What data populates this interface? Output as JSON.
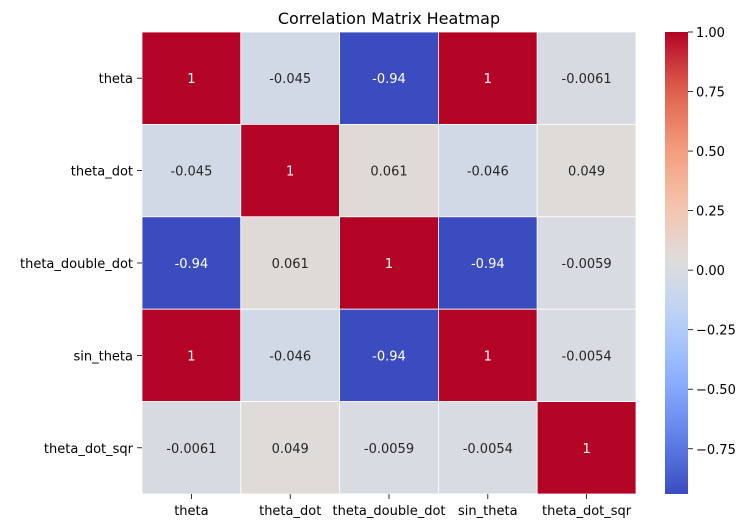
{
  "chart_data": {
    "type": "heatmap",
    "title": "Correlation Matrix Heatmap",
    "xlabel": "",
    "ylabel": "",
    "x_labels": [
      "theta",
      "theta_dot",
      "theta_double_dot",
      "sin_theta",
      "theta_dot_sqr"
    ],
    "y_labels": [
      "theta",
      "theta_dot",
      "theta_double_dot",
      "sin_theta",
      "theta_dot_sqr"
    ],
    "values": [
      [
        1,
        -0.045,
        -0.94,
        1,
        -0.0061
      ],
      [
        -0.045,
        1,
        0.061,
        -0.046,
        0.049
      ],
      [
        -0.94,
        0.061,
        1,
        -0.94,
        -0.0059
      ],
      [
        1,
        -0.046,
        -0.94,
        1,
        -0.0054
      ],
      [
        -0.0061,
        0.049,
        -0.0059,
        -0.0054,
        1
      ]
    ],
    "annotations": [
      [
        "1",
        "-0.045",
        "-0.94",
        "1",
        "-0.0061"
      ],
      [
        "-0.045",
        "1",
        "0.061",
        "-0.046",
        "0.049"
      ],
      [
        "-0.94",
        "0.061",
        "1",
        "-0.94",
        "-0.0059"
      ],
      [
        "1",
        "-0.046",
        "-0.94",
        "1",
        "-0.0054"
      ],
      [
        "-0.0061",
        "0.049",
        "-0.0059",
        "-0.0054",
        "1"
      ]
    ],
    "colormap": "coolwarm",
    "colorbar": {
      "vmin": -0.94,
      "vmax": 1.0,
      "ticks": [
        1.0,
        0.75,
        0.5,
        0.25,
        0.0,
        -0.25,
        -0.5,
        -0.75
      ],
      "tick_labels": [
        "1.00",
        "0.75",
        "0.50",
        "0.25",
        "0.00",
        "−0.25",
        "−0.50",
        "−0.75"
      ],
      "position": "right"
    },
    "grid": false,
    "cell_border_color": "#ffffff"
  }
}
